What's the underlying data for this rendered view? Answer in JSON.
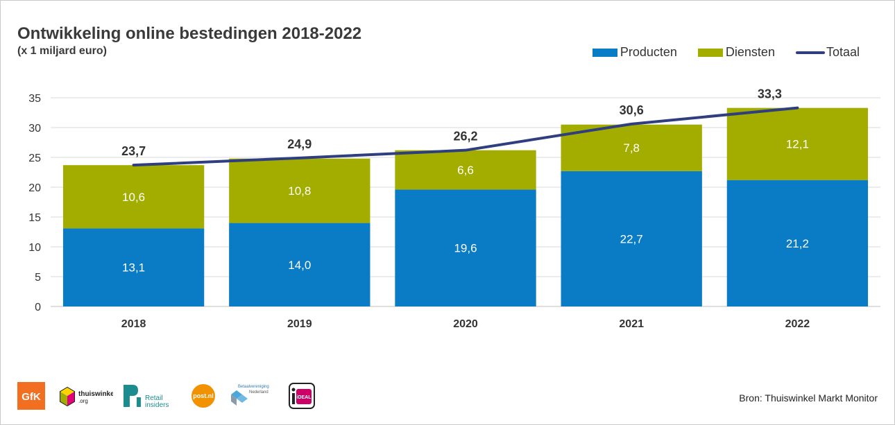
{
  "header": {
    "title": "Ontwikkeling online bestedingen 2018-2022",
    "subtitle": "(x 1 miljard euro)"
  },
  "chart_data": {
    "type": "bar",
    "stacked": true,
    "categories": [
      "2018",
      "2019",
      "2020",
      "2021",
      "2022"
    ],
    "series": [
      {
        "name": "Producten",
        "values": [
          13.1,
          14.0,
          19.6,
          22.7,
          21.2
        ],
        "labels": [
          "13,1",
          "14,0",
          "19,6",
          "22,7",
          "21,2"
        ],
        "color": "#0a7bc5"
      },
      {
        "name": "Diensten",
        "values": [
          10.6,
          10.8,
          6.6,
          7.8,
          12.1
        ],
        "labels": [
          "10,6",
          "10,8",
          "6,6",
          "7,8",
          "12,1"
        ],
        "color": "#a3ad00"
      }
    ],
    "line": {
      "name": "Totaal",
      "values": [
        23.7,
        24.9,
        26.2,
        30.6,
        33.3
      ],
      "labels": [
        "23,7",
        "24,9",
        "26,2",
        "30,6",
        "33,3"
      ],
      "color": "#2f3e7e"
    },
    "yticks": [
      "0",
      "5",
      "10",
      "15",
      "20",
      "25",
      "30",
      "35"
    ],
    "ylim": [
      0,
      35
    ],
    "grid": true,
    "legend_position": "top-right"
  },
  "footer": {
    "source": "Bron: Thuiswinkel Markt Monitor",
    "logos": {
      "gfk": "GfK",
      "thuiswinkel_1": "thuiswinkel",
      "thuiswinkel_2": ".org",
      "retail_1": "Retail",
      "retail_2": "insiders",
      "postnl": "post.nl",
      "betaal_1": "Betaalvereniging",
      "betaal_2": "Nederland",
      "ideal": "iDEAL"
    }
  }
}
